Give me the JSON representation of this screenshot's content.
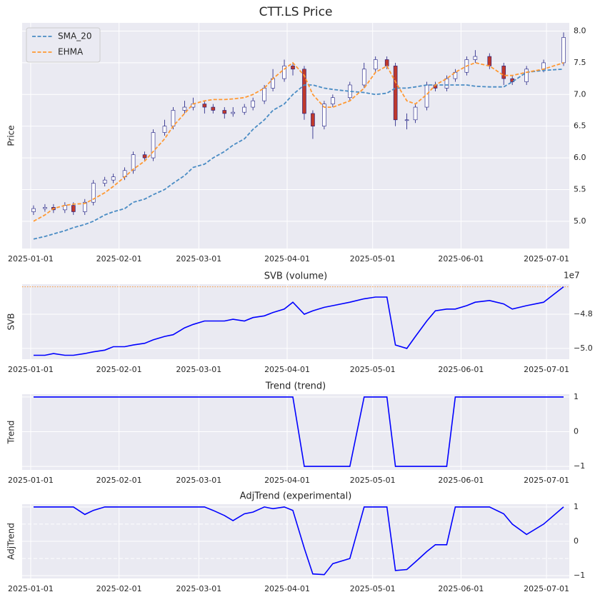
{
  "chart_data": [
    {
      "type": "candlestick",
      "title": "CTT.LS Price",
      "ylabel": "Price",
      "x": [
        "2025-01-02",
        "2025-01-06",
        "2025-01-09",
        "2025-01-13",
        "2025-01-16",
        "2025-01-20",
        "2025-01-23",
        "2025-01-27",
        "2025-01-30",
        "2025-02-03",
        "2025-02-06",
        "2025-02-10",
        "2025-02-13",
        "2025-02-17",
        "2025-02-20",
        "2025-02-24",
        "2025-02-27",
        "2025-03-03",
        "2025-03-06",
        "2025-03-10",
        "2025-03-13",
        "2025-03-17",
        "2025-03-20",
        "2025-03-24",
        "2025-03-27",
        "2025-03-31",
        "2025-04-03",
        "2025-04-07",
        "2025-04-10",
        "2025-04-14",
        "2025-04-17",
        "2025-04-23",
        "2025-04-28",
        "2025-05-02",
        "2025-05-06",
        "2025-05-09",
        "2025-05-13",
        "2025-05-16",
        "2025-05-20",
        "2025-05-23",
        "2025-05-27",
        "2025-05-30",
        "2025-06-03",
        "2025-06-06",
        "2025-06-11",
        "2025-06-16",
        "2025-06-19",
        "2025-06-24",
        "2025-06-30",
        "2025-07-07"
      ],
      "open": [
        5.15,
        5.2,
        5.22,
        5.18,
        5.25,
        5.15,
        5.3,
        5.6,
        5.65,
        5.7,
        5.8,
        6.05,
        6.0,
        6.4,
        6.5,
        6.75,
        6.8,
        6.85,
        6.8,
        6.75,
        6.7,
        6.72,
        6.8,
        6.9,
        7.1,
        7.25,
        7.45,
        7.4,
        6.7,
        6.5,
        6.85,
        6.95,
        7.15,
        7.4,
        7.55,
        7.45,
        6.6,
        6.6,
        6.8,
        7.15,
        7.1,
        7.25,
        7.35,
        7.55,
        7.6,
        7.45,
        7.25,
        7.2,
        7.4,
        7.5
      ],
      "high": [
        5.25,
        5.27,
        5.27,
        5.3,
        5.3,
        5.35,
        5.65,
        5.7,
        5.75,
        5.85,
        6.1,
        6.1,
        6.45,
        6.6,
        6.8,
        6.9,
        6.95,
        6.9,
        6.85,
        6.8,
        6.8,
        6.85,
        6.95,
        7.15,
        7.4,
        7.55,
        7.5,
        7.45,
        6.75,
        6.9,
        7.0,
        7.2,
        7.5,
        7.6,
        7.6,
        7.5,
        6.7,
        6.85,
        7.2,
        7.2,
        7.3,
        7.4,
        7.6,
        7.7,
        7.65,
        7.5,
        7.3,
        7.45,
        7.55,
        7.98
      ],
      "low": [
        5.1,
        5.15,
        5.13,
        5.13,
        5.1,
        5.1,
        5.25,
        5.55,
        5.6,
        5.65,
        5.75,
        5.95,
        5.95,
        6.35,
        6.45,
        6.7,
        6.75,
        6.7,
        6.7,
        6.62,
        6.65,
        6.68,
        6.75,
        6.85,
        7.05,
        7.2,
        7.3,
        6.6,
        6.3,
        6.45,
        6.8,
        6.9,
        7.1,
        7.35,
        7.4,
        6.5,
        6.45,
        6.55,
        6.75,
        7.05,
        7.05,
        7.2,
        7.3,
        7.5,
        7.4,
        7.15,
        7.15,
        7.15,
        7.35,
        7.45
      ],
      "close": [
        5.2,
        5.22,
        5.18,
        5.25,
        5.15,
        5.3,
        5.6,
        5.65,
        5.7,
        5.8,
        6.05,
        6.0,
        6.4,
        6.5,
        6.75,
        6.8,
        6.85,
        6.8,
        6.75,
        6.7,
        6.72,
        6.8,
        6.9,
        7.1,
        7.25,
        7.45,
        7.4,
        6.7,
        6.5,
        6.85,
        6.95,
        7.15,
        7.4,
        7.55,
        7.45,
        6.6,
        6.6,
        6.8,
        7.15,
        7.1,
        7.25,
        7.35,
        7.55,
        7.6,
        7.45,
        7.25,
        7.2,
        7.4,
        7.5,
        7.9
      ],
      "up_color": "#ffffff",
      "down_color": "#c0392b",
      "edge_color": "#1a1a80",
      "series": [
        {
          "name": "SMA_20",
          "color": "#4a8cc4",
          "dashed": true,
          "values": [
            4.72,
            4.76,
            4.8,
            4.85,
            4.9,
            4.95,
            5.0,
            5.1,
            5.15,
            5.2,
            5.3,
            5.35,
            5.42,
            5.5,
            5.6,
            5.72,
            5.85,
            5.9,
            6.0,
            6.1,
            6.2,
            6.3,
            6.45,
            6.6,
            6.75,
            6.85,
            7.0,
            7.15,
            7.15,
            7.1,
            7.08,
            7.05,
            7.03,
            7.0,
            7.02,
            7.1,
            7.1,
            7.12,
            7.15,
            7.15,
            7.15,
            7.15,
            7.15,
            7.13,
            7.12,
            7.12,
            7.2,
            7.35,
            7.38,
            7.4
          ]
        },
        {
          "name": "EHMA",
          "color": "#ff9933",
          "dashed": true,
          "values": [
            5.0,
            5.1,
            5.2,
            5.25,
            5.27,
            5.28,
            5.35,
            5.45,
            5.55,
            5.7,
            5.82,
            5.95,
            6.1,
            6.3,
            6.5,
            6.7,
            6.85,
            6.9,
            6.92,
            6.92,
            6.93,
            6.95,
            7.0,
            7.1,
            7.25,
            7.4,
            7.5,
            7.3,
            7.0,
            6.8,
            6.8,
            6.9,
            7.1,
            7.35,
            7.45,
            7.2,
            6.9,
            6.85,
            7.0,
            7.15,
            7.25,
            7.35,
            7.45,
            7.5,
            7.45,
            7.3,
            7.3,
            7.35,
            7.4,
            7.5
          ]
        }
      ],
      "legend": "upper left",
      "xlim": [
        "2024-12-29",
        "2025-07-09"
      ],
      "xticks": [
        "2025-01-01",
        "2025-02-01",
        "2025-03-01",
        "2025-04-01",
        "2025-05-01",
        "2025-06-01",
        "2025-07-01"
      ],
      "ylim": [
        4.57,
        8.13
      ],
      "yticks": [
        {
          "value": 5,
          "label": "5.0"
        },
        {
          "value": 5.5,
          "label": "5.5"
        },
        {
          "value": 6,
          "label": "6.0"
        },
        {
          "value": 6.5,
          "label": "6.5"
        },
        {
          "value": 7,
          "label": "7.0"
        },
        {
          "value": 7.5,
          "label": "7.5"
        },
        {
          "value": 8,
          "label": "8.0"
        }
      ],
      "grid": true
    },
    {
      "type": "line",
      "title": "SVB (volume)",
      "ylabel": "SVB",
      "offset_label": "1e7",
      "x": [
        "2025-01-02",
        "2025-01-06",
        "2025-01-09",
        "2025-01-13",
        "2025-01-16",
        "2025-01-20",
        "2025-01-23",
        "2025-01-27",
        "2025-01-30",
        "2025-02-03",
        "2025-02-06",
        "2025-02-10",
        "2025-02-13",
        "2025-02-17",
        "2025-02-20",
        "2025-02-24",
        "2025-02-27",
        "2025-03-03",
        "2025-03-06",
        "2025-03-10",
        "2025-03-13",
        "2025-03-17",
        "2025-03-20",
        "2025-03-24",
        "2025-03-27",
        "2025-03-31",
        "2025-04-03",
        "2025-04-07",
        "2025-04-10",
        "2025-04-14",
        "2025-04-17",
        "2025-04-23",
        "2025-04-28",
        "2025-05-02",
        "2025-05-06",
        "2025-05-09",
        "2025-05-13",
        "2025-05-16",
        "2025-05-20",
        "2025-05-23",
        "2025-05-27",
        "2025-05-30",
        "2025-06-03",
        "2025-06-06",
        "2025-06-11",
        "2025-06-16",
        "2025-06-19",
        "2025-06-24",
        "2025-06-30",
        "2025-07-07"
      ],
      "series": [
        {
          "color": "#0000ff",
          "values": [
            -5.04,
            -5.04,
            -5.03,
            -5.04,
            -5.04,
            -5.03,
            -5.02,
            -5.01,
            -4.99,
            -4.99,
            -4.98,
            -4.97,
            -4.95,
            -4.93,
            -4.92,
            -4.88,
            -4.86,
            -4.84,
            -4.84,
            -4.84,
            -4.83,
            -4.84,
            -4.82,
            -4.81,
            -4.79,
            -4.77,
            -4.73,
            -4.8,
            -4.78,
            -4.76,
            -4.75,
            -4.73,
            -4.71,
            -4.7,
            -4.7,
            -4.98,
            -5.0,
            -4.93,
            -4.84,
            -4.78,
            -4.77,
            -4.77,
            -4.75,
            -4.73,
            -4.72,
            -4.74,
            -4.77,
            -4.75,
            -4.73,
            -4.64
          ]
        }
      ],
      "hlines": [
        {
          "value": -4.64,
          "color": "#ff9933",
          "style": "dotted"
        }
      ],
      "xlim": [
        "2024-12-29",
        "2025-07-09"
      ],
      "xticks": [
        "2025-01-01",
        "2025-02-01",
        "2025-03-01",
        "2025-04-01",
        "2025-05-01",
        "2025-06-01",
        "2025-07-01"
      ],
      "ylim": [
        -5.063,
        -4.625
      ],
      "yticks": [
        {
          "value": -5,
          "label": "−5.0"
        },
        {
          "value": -4.8,
          "label": "−4.8"
        }
      ],
      "grid": true
    },
    {
      "type": "line",
      "title": "Trend (trend)",
      "ylabel": "Trend",
      "x": [
        "2025-01-02",
        "2025-01-06",
        "2025-01-09",
        "2025-01-13",
        "2025-01-16",
        "2025-01-20",
        "2025-01-23",
        "2025-01-27",
        "2025-01-30",
        "2025-02-03",
        "2025-02-06",
        "2025-02-10",
        "2025-02-13",
        "2025-02-17",
        "2025-02-20",
        "2025-02-24",
        "2025-02-27",
        "2025-03-03",
        "2025-03-06",
        "2025-03-10",
        "2025-03-13",
        "2025-03-17",
        "2025-03-20",
        "2025-03-24",
        "2025-03-27",
        "2025-03-31",
        "2025-04-03",
        "2025-04-07",
        "2025-04-10",
        "2025-04-14",
        "2025-04-17",
        "2025-04-23",
        "2025-04-28",
        "2025-05-02",
        "2025-05-06",
        "2025-05-09",
        "2025-05-13",
        "2025-05-16",
        "2025-05-20",
        "2025-05-23",
        "2025-05-27",
        "2025-05-30",
        "2025-06-03",
        "2025-06-06",
        "2025-06-11",
        "2025-06-16",
        "2025-06-19",
        "2025-06-24",
        "2025-06-30",
        "2025-07-07"
      ],
      "series": [
        {
          "color": "#0000ff",
          "values": [
            1,
            1,
            1,
            1,
            1,
            1,
            1,
            1,
            1,
            1,
            1,
            1,
            1,
            1,
            1,
            1,
            1,
            1,
            1,
            1,
            1,
            1,
            1,
            1,
            1,
            1,
            1,
            -1,
            -1,
            -1,
            -1,
            -1,
            1,
            1,
            1,
            -1,
            -1,
            -1,
            -1,
            -1,
            -1,
            1,
            1,
            1,
            1,
            1,
            1,
            1,
            1,
            1
          ]
        }
      ],
      "xlim": [
        "2024-12-29",
        "2025-07-09"
      ],
      "xticks": [
        "2025-01-01",
        "2025-02-01",
        "2025-03-01",
        "2025-04-01",
        "2025-05-01",
        "2025-06-01",
        "2025-07-01"
      ],
      "ylim": [
        -1.1,
        1.08
      ],
      "yticks": [
        {
          "value": -1,
          "label": "−1"
        },
        0,
        1
      ],
      "grid": true
    },
    {
      "type": "line",
      "title": "AdjTrend (experimental)",
      "ylabel": "AdjTrend",
      "x": [
        "2025-01-02",
        "2025-01-06",
        "2025-01-09",
        "2025-01-13",
        "2025-01-16",
        "2025-01-20",
        "2025-01-23",
        "2025-01-27",
        "2025-01-30",
        "2025-02-03",
        "2025-02-06",
        "2025-02-10",
        "2025-02-13",
        "2025-02-17",
        "2025-02-20",
        "2025-02-24",
        "2025-02-27",
        "2025-03-03",
        "2025-03-06",
        "2025-03-10",
        "2025-03-13",
        "2025-03-17",
        "2025-03-20",
        "2025-03-24",
        "2025-03-27",
        "2025-03-31",
        "2025-04-03",
        "2025-04-07",
        "2025-04-10",
        "2025-04-14",
        "2025-04-17",
        "2025-04-23",
        "2025-04-28",
        "2025-05-02",
        "2025-05-06",
        "2025-05-09",
        "2025-05-13",
        "2025-05-16",
        "2025-05-20",
        "2025-05-23",
        "2025-05-27",
        "2025-05-30",
        "2025-06-03",
        "2025-06-06",
        "2025-06-11",
        "2025-06-16",
        "2025-06-19",
        "2025-06-24",
        "2025-06-30",
        "2025-07-07"
      ],
      "series": [
        {
          "color": "#0000ff",
          "values": [
            1,
            1,
            1,
            1,
            1,
            0.78,
            0.9,
            1,
            1,
            1,
            1,
            1,
            1,
            1,
            1,
            1,
            1,
            1,
            0.9,
            0.75,
            0.6,
            0.8,
            0.85,
            1,
            0.95,
            1,
            0.9,
            -0.2,
            -0.95,
            -0.97,
            -0.65,
            -0.5,
            1,
            1,
            1,
            -0.85,
            -0.82,
            -0.6,
            -0.3,
            -0.1,
            -0.1,
            1,
            1,
            1,
            1,
            0.8,
            0.5,
            0.2,
            0.5,
            1
          ]
        }
      ],
      "hlines": [
        {
          "value": 0.5,
          "color": "#ffffff",
          "style": "dashed"
        },
        {
          "value": -0.5,
          "color": "#ffffff",
          "style": "dashed"
        }
      ],
      "xlim": [
        "2024-12-29",
        "2025-07-09"
      ],
      "xticks": [
        "2025-01-01",
        "2025-02-01",
        "2025-03-01",
        "2025-04-01",
        "2025-05-01",
        "2025-06-01",
        "2025-07-01"
      ],
      "ylim": [
        -1.08,
        1.08
      ],
      "yticks": [
        {
          "value": -1,
          "label": "−1"
        },
        0,
        1
      ],
      "grid": true
    }
  ]
}
